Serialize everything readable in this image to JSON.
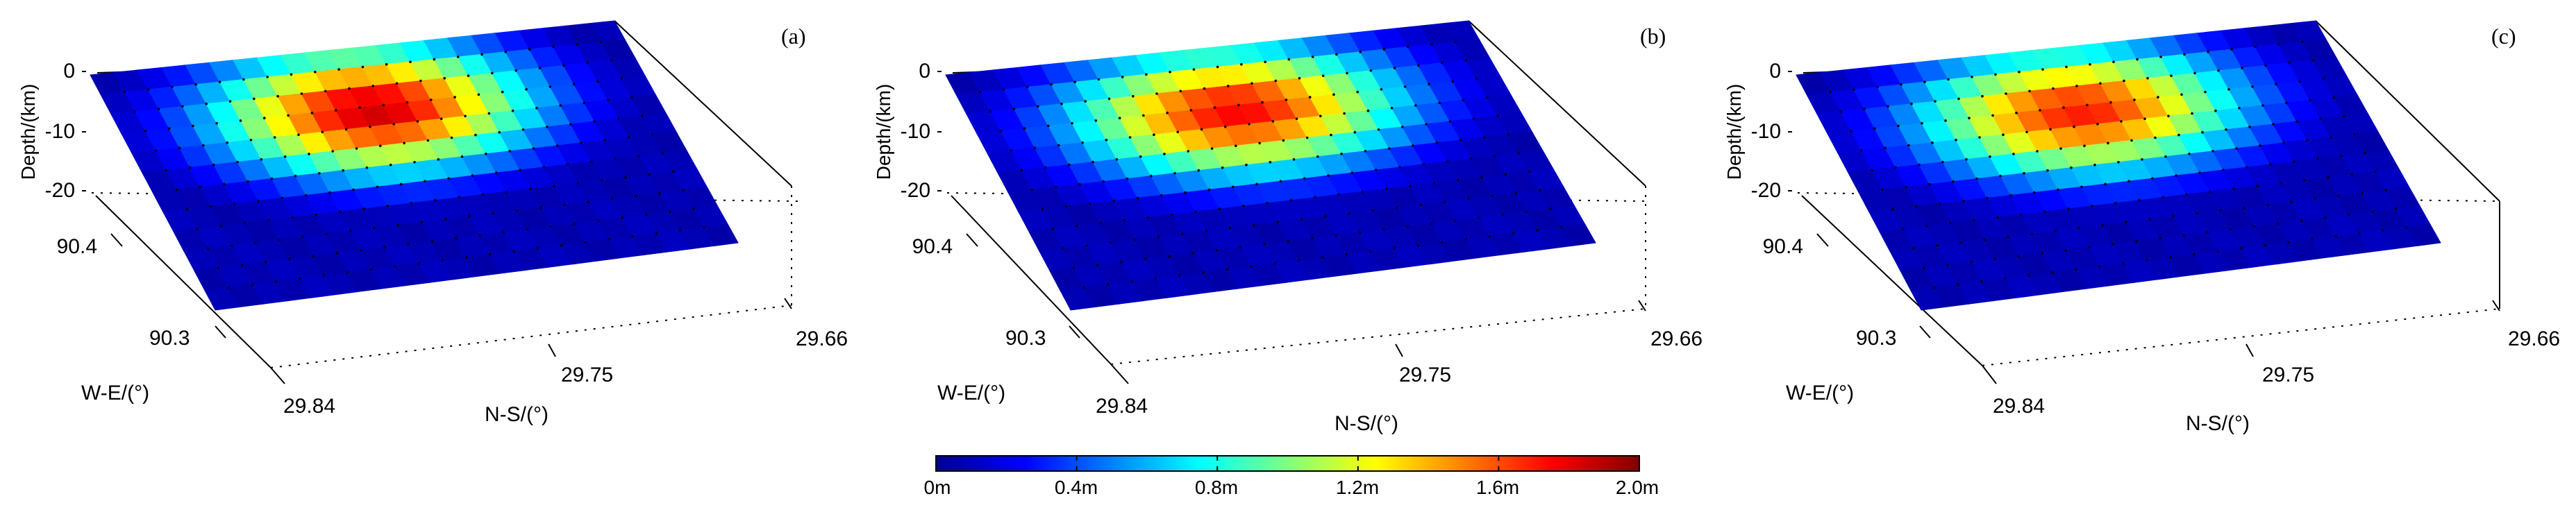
{
  "chart_data": [
    {
      "type": "heatmap",
      "panel_label": "(a)",
      "zlabel": "Depth/(km)",
      "ylabel": "W-E/(°)",
      "xlabel": "N-S/(°)",
      "z_ticks": [
        "0",
        "-10",
        "-20"
      ],
      "we_ticks": [
        "90.4",
        "90.3"
      ],
      "ns_ticks": [
        "29.84",
        "29.75",
        "29.66"
      ],
      "grid": true,
      "fault_plane": {
        "rows": 12,
        "cols": 22
      },
      "slip_peak_m": 1.85,
      "peak_row": 3.2,
      "peak_col": 10.5,
      "spread_row": 2.3,
      "spread_col": 4.6
    },
    {
      "type": "heatmap",
      "panel_label": "(b)",
      "zlabel": "Depth/(km)",
      "ylabel": "W-E/(°)",
      "xlabel": "N-S/(°)",
      "z_ticks": [
        "0",
        "-10",
        "-20"
      ],
      "we_ticks": [
        "90.4",
        "90.3"
      ],
      "ns_ticks": [
        "29.84",
        "29.75",
        "29.66"
      ],
      "grid": true,
      "fault_plane": {
        "rows": 12,
        "cols": 22
      },
      "slip_peak_m": 1.75,
      "peak_row": 3.3,
      "peak_col": 10.8,
      "spread_row": 2.3,
      "spread_col": 4.8
    },
    {
      "type": "heatmap",
      "panel_label": "(c)",
      "zlabel": "Depth/(km)",
      "ylabel": "W-E/(°)",
      "xlabel": "N-S/(°)",
      "z_ticks": [
        "0",
        "-10",
        "-20"
      ],
      "we_ticks": [
        "90.4",
        "90.3"
      ],
      "ns_ticks": [
        "29.84",
        "29.75",
        "29.66"
      ],
      "grid": true,
      "fault_plane": {
        "rows": 12,
        "cols": 22
      },
      "slip_peak_m": 1.7,
      "peak_row": 3.3,
      "peak_col": 10.6,
      "spread_row": 2.3,
      "spread_col": 4.7
    }
  ],
  "colorbar": {
    "min": 0,
    "max": 2.0,
    "tick_labels": [
      "0m",
      "0.4m",
      "0.8m",
      "1.2m",
      "1.6m",
      "2.0m"
    ],
    "colormap": "jet",
    "colors": [
      "#00008f",
      "#0000ff",
      "#00ffff",
      "#ffff00",
      "#ff0000",
      "#800000"
    ]
  }
}
